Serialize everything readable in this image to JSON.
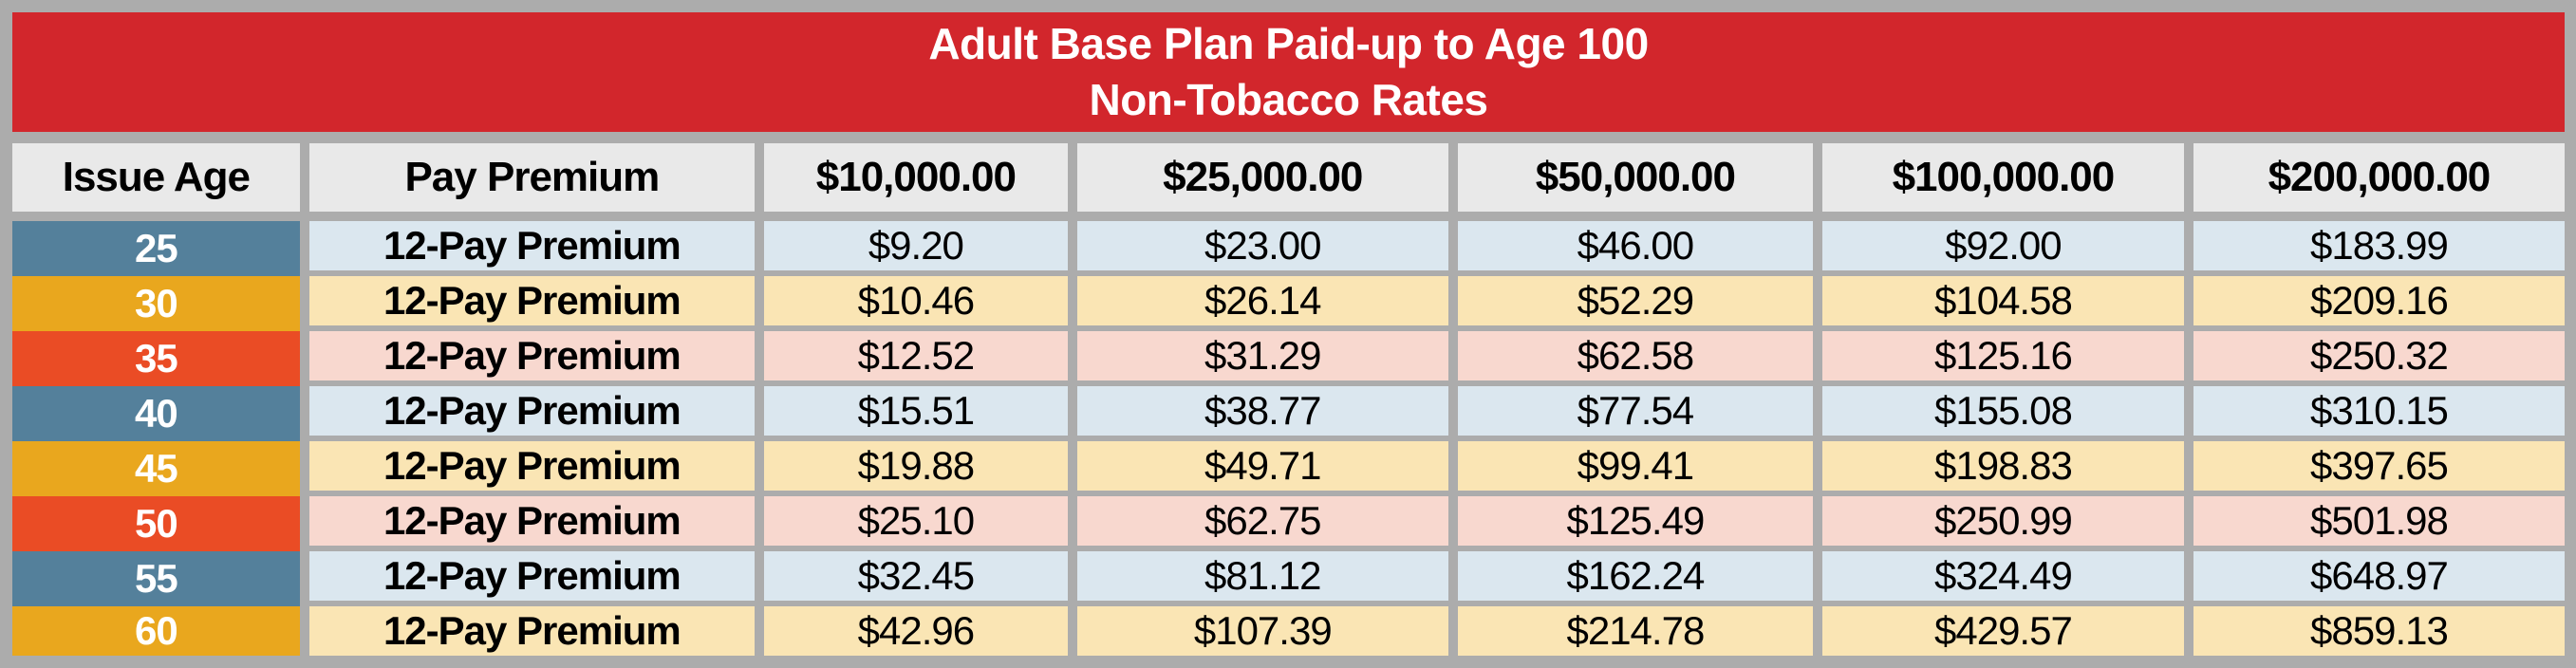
{
  "title": {
    "line1": "Adult Base Plan Paid-up to Age 100",
    "line2": "Non-Tobacco Rates"
  },
  "header": {
    "issue_age": "Issue Age",
    "pay_premium": "Pay Premium",
    "amounts": [
      "$10,000.00",
      "$25,000.00",
      "$50,000.00",
      "$100,000.00",
      "$200,000.00"
    ]
  },
  "rows": [
    {
      "age": "25",
      "label": "12-Pay Premium",
      "values": [
        "$9.20",
        "$23.00",
        "$46.00",
        "$92.00",
        "$183.99"
      ]
    },
    {
      "age": "30",
      "label": "12-Pay Premium",
      "values": [
        "$10.46",
        "$26.14",
        "$52.29",
        "$104.58",
        "$209.16"
      ]
    },
    {
      "age": "35",
      "label": "12-Pay Premium",
      "values": [
        "$12.52",
        "$31.29",
        "$62.58",
        "$125.16",
        "$250.32"
      ]
    },
    {
      "age": "40",
      "label": "12-Pay Premium",
      "values": [
        "$15.51",
        "$38.77",
        "$77.54",
        "$155.08",
        "$310.15"
      ]
    },
    {
      "age": "45",
      "label": "12-Pay Premium",
      "values": [
        "$19.88",
        "$49.71",
        "$99.41",
        "$198.83",
        "$397.65"
      ]
    },
    {
      "age": "50",
      "label": "12-Pay Premium",
      "values": [
        "$25.10",
        "$62.75",
        "$125.49",
        "$250.99",
        "$501.98"
      ]
    },
    {
      "age": "55",
      "label": "12-Pay Premium",
      "values": [
        "$32.45",
        "$81.12",
        "$162.24",
        "$324.49",
        "$648.97"
      ]
    },
    {
      "age": "60",
      "label": "12-Pay Premium",
      "values": [
        "$42.96",
        "$107.39",
        "$214.78",
        "$429.57",
        "$859.13"
      ]
    }
  ],
  "colors": {
    "title-bg": "#D2262C",
    "title-text": "#FFFFFF",
    "header-bg": "#E9E9E9",
    "frame-gray": "#ACACAC",
    "text-black": "#000000",
    "age-text": "#FFFFFF",
    "age-steel-blue": "#54809B",
    "age-amber": "#E9A71E",
    "age-orange-red": "#EA4C25",
    "row-light-blue": "#DBE7EF",
    "row-cream": "#FAE5B4",
    "row-pink": "#F8D8CF"
  },
  "chart_data": {
    "type": "table",
    "title": "Adult Base Plan Paid-up to Age 100 — Non-Tobacco Rates",
    "columns": [
      "Issue Age",
      "Pay Premium",
      "$10,000.00",
      "$25,000.00",
      "$50,000.00",
      "$100,000.00",
      "$200,000.00"
    ],
    "rows": [
      [
        "25",
        "12-Pay Premium",
        9.2,
        23.0,
        46.0,
        92.0,
        183.99
      ],
      [
        "30",
        "12-Pay Premium",
        10.46,
        26.14,
        52.29,
        104.58,
        209.16
      ],
      [
        "35",
        "12-Pay Premium",
        12.52,
        31.29,
        62.58,
        125.16,
        250.32
      ],
      [
        "40",
        "12-Pay Premium",
        15.51,
        38.77,
        77.54,
        155.08,
        310.15
      ],
      [
        "45",
        "12-Pay Premium",
        19.88,
        49.71,
        99.41,
        198.83,
        397.65
      ],
      [
        "50",
        "12-Pay Premium",
        25.1,
        62.75,
        125.49,
        250.99,
        501.98
      ],
      [
        "55",
        "12-Pay Premium",
        32.45,
        81.12,
        162.24,
        324.49,
        648.97
      ],
      [
        "60",
        "12-Pay Premium",
        42.96,
        107.39,
        214.78,
        429.57,
        859.13
      ]
    ]
  }
}
